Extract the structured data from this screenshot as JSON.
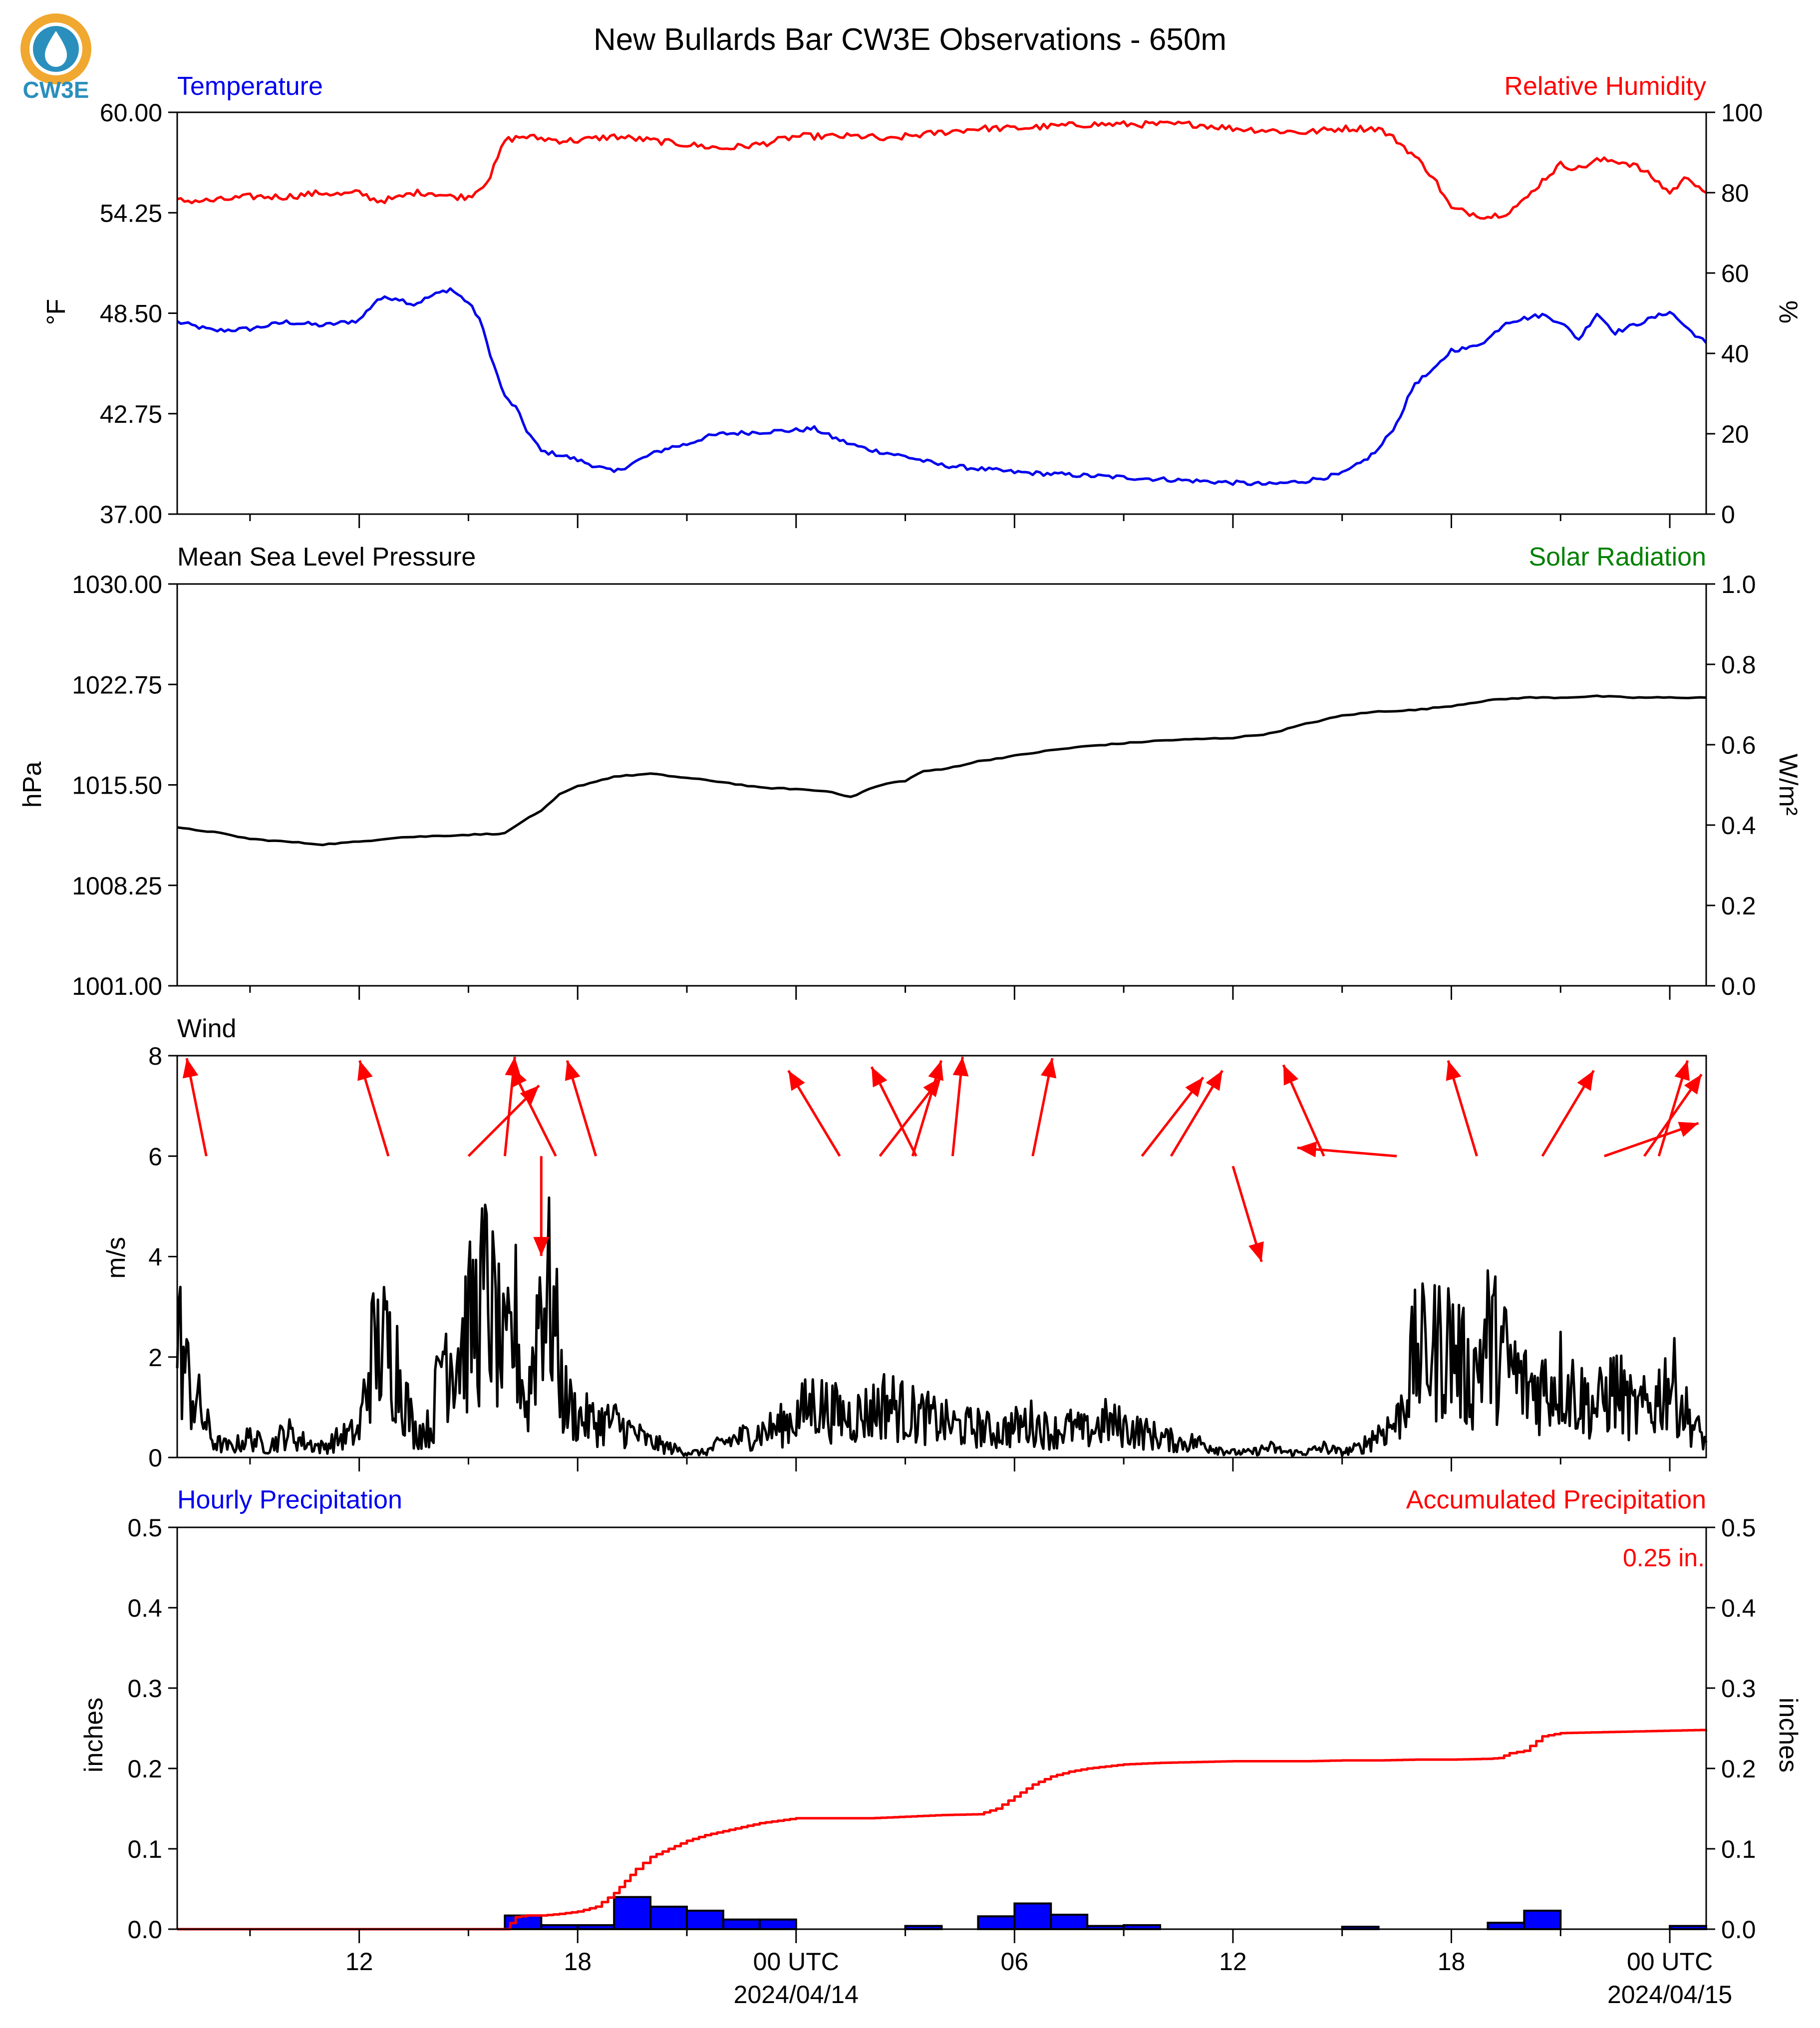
{
  "title": "New Bullards Bar CW3E Observations - 650m",
  "logo": {
    "text": "CW3E",
    "icon": "water-drop-logo-icon",
    "color": "#2a8fbd",
    "accent": "#f0a830"
  },
  "colors": {
    "blue": "#0000ee",
    "red": "#ff0000",
    "black": "#000000",
    "green": "#008000",
    "bar_fill": "#0000ff"
  },
  "x_axis": {
    "ticks": [
      "12",
      "18",
      "00 UTC",
      "06",
      "12",
      "18",
      "00 UTC"
    ],
    "dates": [
      "",
      "",
      "2024/04/14",
      "",
      "",
      "",
      "2024/04/15"
    ],
    "tick_hours": [
      12,
      18,
      24,
      30,
      36,
      42,
      48
    ],
    "minor_every_hours": 3,
    "range_hours": [
      7,
      49
    ]
  },
  "chart_data": [
    {
      "type": "line",
      "title_left": "Temperature",
      "title_right": "Relative Humidity",
      "ylabel_left": "°F",
      "ylabel_right": "%",
      "ylim_left": [
        37.0,
        60.0
      ],
      "ylim_right": [
        0,
        100
      ],
      "yticks_left": [
        "37.00",
        "42.75",
        "48.50",
        "54.25",
        "60.00"
      ],
      "yticks_right": [
        "0",
        "20",
        "40",
        "60",
        "80",
        "100"
      ],
      "grid": false,
      "series": [
        {
          "name": "Temperature",
          "axis": "left",
          "color": "#0000ee",
          "x": [
            7,
            8,
            9,
            10,
            11,
            12,
            12.5,
            13,
            13.5,
            14,
            14.5,
            15,
            15.3,
            15.7,
            16,
            16.3,
            16.6,
            17,
            17.5,
            18,
            19,
            19.5,
            20,
            20.5,
            21,
            21.5,
            22,
            23,
            24,
            24.5,
            25,
            25.5,
            26,
            27,
            28,
            29,
            30,
            31,
            32,
            33,
            34,
            35,
            36,
            37,
            38,
            39,
            39.5,
            40,
            40.5,
            41,
            41.5,
            42,
            42.5,
            43,
            43.5,
            44,
            44.5,
            45,
            45.5,
            46,
            46.5,
            47,
            47.5,
            48,
            48.5,
            49
          ],
          "y": [
            48.0,
            47.5,
            47.6,
            48.0,
            47.8,
            48.1,
            49.3,
            49.4,
            49.0,
            49.5,
            49.9,
            49.1,
            48.2,
            45.5,
            43.7,
            43.1,
            41.8,
            40.6,
            40.4,
            40.1,
            39.4,
            39.9,
            40.4,
            40.8,
            41.0,
            41.4,
            41.6,
            41.7,
            41.8,
            41.9,
            41.4,
            41.0,
            40.7,
            40.3,
            39.8,
            39.6,
            39.4,
            39.3,
            39.2,
            39.1,
            39.0,
            38.9,
            38.8,
            38.7,
            38.9,
            39.3,
            39.9,
            40.7,
            42.2,
            44.5,
            45.2,
            46.4,
            46.5,
            47.0,
            48.0,
            48.2,
            48.4,
            48.0,
            47.0,
            48.5,
            47.4,
            47.8,
            48.2,
            48.6,
            47.6,
            46.8
          ]
        },
        {
          "name": "Relative Humidity",
          "axis": "right",
          "color": "#ff0000",
          "x": [
            7,
            8,
            9,
            10,
            11,
            11.5,
            12,
            12.5,
            13,
            13.5,
            14,
            14.5,
            15,
            15.3,
            15.6,
            16,
            16.5,
            17,
            17.5,
            18,
            19,
            20,
            21,
            22,
            23,
            24,
            25,
            26,
            26.5,
            27,
            28,
            29,
            30,
            31,
            32,
            33,
            34,
            35,
            36,
            37,
            38,
            39,
            40,
            40.5,
            41,
            41.5,
            42,
            42.5,
            43,
            43.5,
            44,
            44.5,
            45,
            45.5,
            46,
            46.5,
            47,
            47.5,
            48,
            48.5,
            49
          ],
          "y": [
            78,
            78,
            79,
            79,
            80,
            79.5,
            80,
            78,
            78.5,
            80,
            80,
            79,
            79,
            81,
            84,
            93,
            94,
            93.5,
            93,
            93,
            94,
            93,
            92,
            91,
            92,
            94,
            94,
            94,
            93,
            94,
            95,
            96,
            96,
            96.5,
            97,
            97,
            97,
            97,
            96,
            95.5,
            95,
            96,
            96,
            93,
            89,
            84,
            76,
            75,
            74,
            75,
            78,
            83,
            87,
            86,
            88,
            88,
            87,
            84,
            80,
            84,
            80
          ]
        }
      ]
    },
    {
      "type": "line",
      "title_left": "Mean Sea Level Pressure",
      "title_right": "Solar Radiation",
      "ylabel_left": "hPa",
      "ylabel_right": "W/m²",
      "ylim_left": [
        1001.0,
        1030.0
      ],
      "ylim_right": [
        0.0,
        1.0
      ],
      "yticks_left": [
        "1001.00",
        "1008.25",
        "1015.50",
        "1022.75",
        "1030.00"
      ],
      "yticks_right": [
        "0.0",
        "0.2",
        "0.4",
        "0.6",
        "0.8",
        "1.0"
      ],
      "grid": false,
      "series": [
        {
          "name": "Mean Sea Level Pressure",
          "axis": "left",
          "color": "#000000",
          "x": [
            7,
            8,
            9,
            10,
            11,
            12,
            13,
            14,
            15,
            16,
            16.5,
            17,
            17.5,
            18,
            19,
            20,
            21,
            22,
            23,
            24,
            25,
            25.5,
            26,
            26.5,
            27,
            27.5,
            28,
            29,
            30,
            31,
            32,
            33,
            34,
            35,
            36,
            37,
            38,
            39,
            40,
            41,
            42,
            42.5,
            43,
            44,
            45,
            46,
            47,
            48,
            49
          ],
          "y": [
            1012.4,
            1012.1,
            1011.6,
            1011.4,
            1011.2,
            1011.4,
            1011.7,
            1011.8,
            1011.9,
            1012.0,
            1012.9,
            1013.6,
            1014.8,
            1015.4,
            1016.1,
            1016.3,
            1016.0,
            1015.7,
            1015.3,
            1015.2,
            1015.0,
            1014.6,
            1015.2,
            1015.6,
            1015.8,
            1016.5,
            1016.6,
            1017.2,
            1017.6,
            1018.0,
            1018.3,
            1018.5,
            1018.7,
            1018.8,
            1018.9,
            1019.2,
            1019.9,
            1020.5,
            1020.8,
            1020.9,
            1021.2,
            1021.4,
            1021.6,
            1021.8,
            1021.8,
            1021.9,
            1021.8,
            1021.8,
            1021.8
          ]
        }
      ]
    },
    {
      "type": "line",
      "title_left": "Wind",
      "ylabel_left": "m/s",
      "ylim_left": [
        0,
        8
      ],
      "yticks_left": [
        "0",
        "2",
        "4",
        "6",
        "8"
      ],
      "grid": false,
      "series": [
        {
          "name": "Wind",
          "axis": "left",
          "color": "#000000",
          "x": [
            7,
            7.3,
            7.6,
            8,
            8.5,
            9,
            9.5,
            10,
            10.5,
            11,
            11.5,
            12,
            12.3,
            12.6,
            13,
            13.5,
            14,
            14.3,
            14.6,
            15,
            15.5,
            16,
            16.3,
            16.6,
            17,
            17.3,
            17.6,
            18,
            18.5,
            19,
            19.5,
            20,
            20.5,
            21,
            21.5,
            22,
            22.5,
            23,
            23.5,
            24,
            24.5,
            25,
            25.5,
            26,
            26.5,
            27,
            27.5,
            28,
            28.5,
            29,
            29.5,
            30,
            30.5,
            31,
            31.5,
            32,
            32.5,
            33,
            33.5,
            34,
            34.5,
            35,
            35.5,
            36,
            36.5,
            37,
            37.5,
            38,
            38.5,
            39,
            39.5,
            40,
            40.5,
            41,
            41.5,
            42,
            42.5,
            43,
            43.5,
            44,
            44.5,
            45,
            45.5,
            46,
            46.5,
            47,
            47.5,
            48,
            48.5,
            49
          ],
          "y": [
            2.5,
            1.5,
            1.0,
            0.3,
            0.2,
            0.4,
            0.2,
            0.5,
            0.3,
            0.2,
            0.4,
            0.5,
            2.0,
            2.2,
            2.0,
            0.5,
            0.6,
            2.3,
            2.1,
            2.5,
            3.3,
            1.8,
            2.6,
            0.9,
            3.5,
            3.0,
            1.2,
            0.8,
            0.7,
            0.7,
            0.5,
            0.3,
            0.2,
            0.1,
            0.1,
            0.3,
            0.4,
            0.5,
            0.6,
            0.8,
            1.1,
            0.9,
            0.8,
            0.9,
            1.1,
            0.9,
            0.8,
            0.7,
            0.6,
            0.6,
            0.5,
            0.6,
            0.7,
            0.5,
            0.6,
            0.5,
            0.7,
            0.6,
            0.5,
            0.4,
            0.3,
            0.3,
            0.2,
            0.1,
            0.1,
            0.2,
            0.1,
            0.1,
            0.2,
            0.1,
            0.2,
            0.5,
            0.7,
            2.0,
            2.1,
            2.3,
            1.5,
            2.4,
            1.9,
            1.4,
            1.4,
            1.6,
            1.2,
            1.0,
            1.4,
            0.9,
            1.0,
            1.6,
            0.8,
            0.3
          ]
        }
      ],
      "arrows": {
        "description": "wind direction arrows",
        "color": "#ff0000",
        "hours": [
          7.8,
          12.8,
          15.0,
          16.0,
          17.4,
          18.5,
          25.2,
          26.3,
          27.2,
          27.3,
          28.3,
          30.5,
          33.5,
          34.3,
          38.5,
          40.5,
          42.7,
          44.5,
          46.2,
          47.3,
          47.7
        ],
        "dx": [
          -0.2,
          -0.3,
          0.8,
          0.1,
          -0.5,
          -0.3,
          -0.6,
          0.7,
          0.3,
          -0.5,
          0.1,
          0.2,
          0.7,
          0.6,
          -0.4,
          -2.4,
          -0.3,
          0.6,
          2.0,
          0.7,
          0.3
        ],
        "dy": [
          1.0,
          1.0,
          0.8,
          1.0,
          1.0,
          1.0,
          1.0,
          0.9,
          1.0,
          1.0,
          1.0,
          1.0,
          0.9,
          1.0,
          0.9,
          0.2,
          1.0,
          1.0,
          0.7,
          1.0,
          1.0
        ],
        "base": [
          6,
          6,
          6,
          6,
          6,
          6,
          6,
          6,
          6,
          6,
          6,
          6,
          6,
          6,
          6,
          6,
          6,
          6,
          6,
          6,
          6
        ]
      }
    },
    {
      "type": "bar",
      "title_left": "Hourly Precipitation",
      "title_right": "Accumulated Precipitation",
      "annotation": "0.25 in.",
      "ylabel_left": "inches",
      "ylabel_right": "inches",
      "ylim_left": [
        0.0,
        0.5
      ],
      "ylim_right": [
        0.0,
        0.5
      ],
      "yticks_left": [
        "0.0",
        "0.1",
        "0.2",
        "0.3",
        "0.4",
        "0.5"
      ],
      "yticks_right": [
        "0.0",
        "0.1",
        "0.2",
        "0.3",
        "0.4",
        "0.5"
      ],
      "grid": false,
      "bars": {
        "name": "Hourly Precipitation",
        "color": "#0000ff",
        "x": [
          16,
          17,
          18,
          19,
          20,
          21,
          22,
          23,
          27,
          29,
          30,
          31,
          32,
          33,
          39,
          43,
          44,
          48
        ],
        "values": [
          0.017,
          0.005,
          0.005,
          0.04,
          0.028,
          0.023,
          0.012,
          0.012,
          0.004,
          0.016,
          0.032,
          0.018,
          0.004,
          0.005,
          0.003,
          0.008,
          0.023,
          0.004
        ]
      },
      "series": [
        {
          "name": "Accumulated Precipitation",
          "axis": "right",
          "color": "#ff0000",
          "x": [
            7,
            16,
            16.3,
            16.6,
            17,
            17.5,
            18,
            18.5,
            19,
            19.3,
            19.6,
            20,
            20.5,
            21,
            21.5,
            22,
            22.5,
            23,
            24,
            25,
            26,
            27,
            28,
            29,
            29.5,
            30,
            30.5,
            31,
            31.5,
            32,
            33,
            34,
            35,
            36,
            37,
            38,
            39,
            40,
            41,
            42,
            43,
            43.3,
            43.6,
            44,
            44.5,
            45,
            46,
            47,
            48,
            49
          ],
          "y": [
            0,
            0,
            0.015,
            0.017,
            0.017,
            0.019,
            0.022,
            0.028,
            0.045,
            0.06,
            0.075,
            0.09,
            0.1,
            0.11,
            0.117,
            0.122,
            0.127,
            0.132,
            0.138,
            0.138,
            0.138,
            0.14,
            0.142,
            0.143,
            0.15,
            0.165,
            0.18,
            0.19,
            0.196,
            0.2,
            0.205,
            0.207,
            0.208,
            0.209,
            0.209,
            0.209,
            0.21,
            0.21,
            0.211,
            0.211,
            0.212,
            0.213,
            0.219,
            0.222,
            0.24,
            0.244,
            0.245,
            0.246,
            0.247,
            0.248
          ]
        }
      ]
    }
  ]
}
